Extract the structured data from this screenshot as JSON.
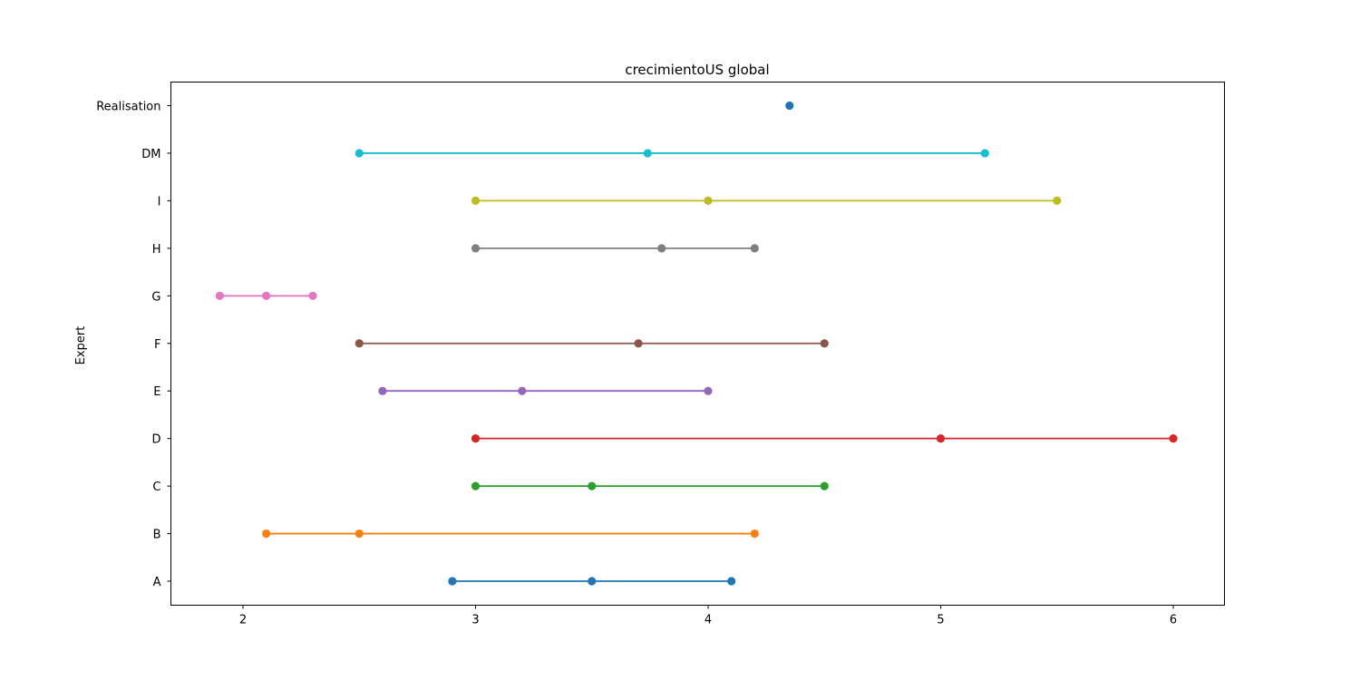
{
  "chart_data": {
    "type": "scatter",
    "title": "crecimientoUS global",
    "xlabel": "",
    "ylabel": "Expert",
    "xlim": [
      1.69,
      6.22
    ],
    "x_ticks": [
      2,
      3,
      4,
      5,
      6
    ],
    "grid": false,
    "categories": [
      "A",
      "B",
      "C",
      "D",
      "E",
      "F",
      "G",
      "H",
      "I",
      "DM",
      "Realisation"
    ],
    "series": [
      {
        "category": "A",
        "values": [
          2.9,
          3.5,
          4.1
        ],
        "color": "#1f77b4"
      },
      {
        "category": "B",
        "values": [
          2.1,
          2.5,
          4.2
        ],
        "color": "#ff7f0e"
      },
      {
        "category": "C",
        "values": [
          3.0,
          3.5,
          4.5
        ],
        "color": "#2ca02c"
      },
      {
        "category": "D",
        "values": [
          3.0,
          5.0,
          6.0
        ],
        "color": "#d62728"
      },
      {
        "category": "E",
        "values": [
          2.6,
          3.2,
          4.0
        ],
        "color": "#9467bd"
      },
      {
        "category": "F",
        "values": [
          2.5,
          3.7,
          4.5
        ],
        "color": "#8c564b"
      },
      {
        "category": "G",
        "values": [
          1.9,
          2.1,
          2.3
        ],
        "color": "#e377c2"
      },
      {
        "category": "H",
        "values": [
          3.0,
          3.8,
          4.2
        ],
        "color": "#7f7f7f"
      },
      {
        "category": "I",
        "values": [
          3.0,
          4.0,
          5.5
        ],
        "color": "#bcbd22"
      },
      {
        "category": "DM",
        "values": [
          2.5,
          3.74,
          5.19
        ],
        "color": "#17becf"
      },
      {
        "category": "Realisation",
        "values": [
          4.35
        ],
        "color": "#1f77b4"
      }
    ]
  }
}
